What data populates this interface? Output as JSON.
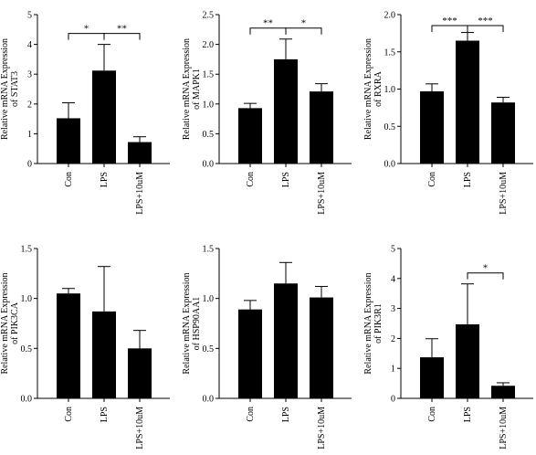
{
  "chart_data": [
    {
      "type": "bar",
      "ylabel": [
        "Relative mRNA Expression",
        "of STAT3"
      ],
      "categories": [
        "Con",
        "LPS",
        "LPS+10uM"
      ],
      "values": [
        1.52,
        3.12,
        0.72
      ],
      "errors": [
        0.52,
        0.88,
        0.18
      ],
      "ylim": [
        0,
        5
      ],
      "yticks": [
        "0",
        "1",
        "2",
        "3",
        "4",
        "5"
      ],
      "yticks_values": [
        0,
        1,
        2,
        3,
        4,
        5
      ],
      "significance": [
        {
          "from": 0,
          "to": 1,
          "label": "*"
        },
        {
          "from": 1,
          "to": 2,
          "label": "**"
        }
      ]
    },
    {
      "type": "bar",
      "ylabel": [
        "Relative mRNA Expression",
        "of MAPK1"
      ],
      "categories": [
        "Con",
        "LPS",
        "LPS+10uM"
      ],
      "values": [
        0.93,
        1.75,
        1.21
      ],
      "errors": [
        0.08,
        0.34,
        0.13
      ],
      "ylim": [
        0,
        2.5
      ],
      "yticks": [
        "0.0",
        "0.5",
        "1.0",
        "1.5",
        "2.0",
        "2.5"
      ],
      "yticks_values": [
        0,
        0.5,
        1,
        1.5,
        2,
        2.5
      ],
      "significance": [
        {
          "from": 0,
          "to": 1,
          "label": "**"
        },
        {
          "from": 1,
          "to": 2,
          "label": "*"
        }
      ]
    },
    {
      "type": "bar",
      "ylabel": [
        "Relative mRNA Expression",
        "of RXRA"
      ],
      "categories": [
        "Con",
        "LPS",
        "LPS+10uM"
      ],
      "values": [
        0.97,
        1.65,
        0.82
      ],
      "errors": [
        0.1,
        0.11,
        0.07
      ],
      "ylim": [
        0,
        2.0
      ],
      "yticks": [
        "0.0",
        "0.5",
        "1.0",
        "1.5",
        "2.0"
      ],
      "yticks_values": [
        0,
        0.5,
        1,
        1.5,
        2
      ],
      "significance": [
        {
          "from": 0,
          "to": 1,
          "label": "***"
        },
        {
          "from": 1,
          "to": 2,
          "label": "***"
        }
      ]
    },
    {
      "type": "bar",
      "ylabel": [
        "Relative mRNA Expression",
        "of PIK3CA"
      ],
      "categories": [
        "Con",
        "LPS",
        "LPS+10uM"
      ],
      "values": [
        1.05,
        0.87,
        0.5
      ],
      "errors": [
        0.05,
        0.45,
        0.18
      ],
      "ylim": [
        0,
        1.5
      ],
      "yticks": [
        "0.0",
        "0.5",
        "1.0",
        "1.5"
      ],
      "yticks_values": [
        0,
        0.5,
        1,
        1.5
      ],
      "significance": []
    },
    {
      "type": "bar",
      "ylabel": [
        "Relative mRNA Expression",
        "of HSP90AA1"
      ],
      "categories": [
        "Con",
        "LPS",
        "LPS+10uM"
      ],
      "values": [
        0.89,
        1.15,
        1.01
      ],
      "errors": [
        0.09,
        0.21,
        0.11
      ],
      "ylim": [
        0,
        1.5
      ],
      "yticks": [
        "0.0",
        "0.5",
        "1.0",
        "1.5"
      ],
      "yticks_values": [
        0,
        0.5,
        1,
        1.5
      ],
      "significance": []
    },
    {
      "type": "bar",
      "ylabel": [
        "Relative mRNA Expression",
        "of PIK3R1"
      ],
      "categories": [
        "Con",
        "LPS",
        "LPS+10uM"
      ],
      "values": [
        1.37,
        2.47,
        0.42
      ],
      "errors": [
        0.62,
        1.35,
        0.1
      ],
      "ylim": [
        0,
        5
      ],
      "yticks": [
        "0",
        "1",
        "2",
        "3",
        "4",
        "5"
      ],
      "yticks_values": [
        0,
        1,
        2,
        3,
        4,
        5
      ],
      "significance": [
        {
          "from": 1,
          "to": 2,
          "label": "*"
        }
      ]
    }
  ]
}
